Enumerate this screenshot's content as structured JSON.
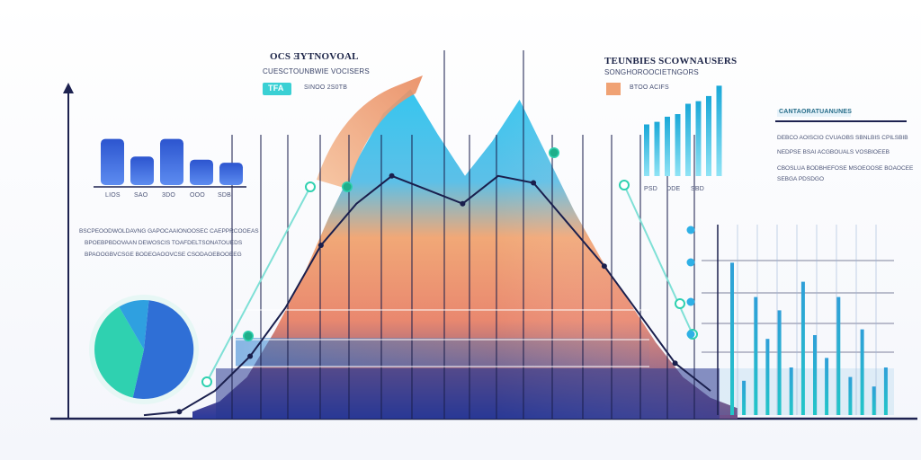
{
  "colors": {
    "axis": "#1d2250",
    "blue_dark": "#27359a",
    "blue": "#2f6fd6",
    "cyan": "#2fc3e6",
    "teal": "#2fd1b0",
    "orange": "#f0a274",
    "coral": "#e9766a",
    "navy_line": "#1a1f4d"
  },
  "header_left": {
    "title": "OCS ƎYTNOVOAL",
    "subtitle": "CUESCTOUNBWIE VOCISERS",
    "badge": "TFA",
    "badge_note": "SINOO 2S0TB"
  },
  "header_right": {
    "title": "TEUNBIES SCOWNAUSERS",
    "subtitle": "SONGHOROOCIETNGORS",
    "legend_note": "BTOO ACIFS"
  },
  "right_panel": {
    "heading": "CANTAORATUANUNES",
    "lines": [
      "DEBCO AOISCIO CVUAOBS SBNLBIS CPILSBIB",
      "NEDPSE BSAI ACGBOUALS VOSBIOEEB",
      "CBOSLUA BODBHEFOSE MSOEOOSE BOAOCEE",
      "SEBGA PDSDGO"
    ]
  },
  "left_panel": {
    "lines": [
      "BSCPEOODWOLDAVNG GAPOCAAIONOOSEC CAEPPRCOOEAS",
      "BPOEBPBDOVAAN DEWOSCIS TOAFDELTSONATOUEDS",
      "BPAOOGBVCSGE BODEOAOOVCSE CSODAOEBOOEEG"
    ]
  },
  "chart_data": [
    {
      "type": "bar",
      "title": "",
      "categories": [
        "LIOS",
        "SAO",
        "3DO",
        "OOO",
        "SDB"
      ],
      "values": [
        60,
        37,
        60,
        33,
        29
      ],
      "ylim": [
        0,
        70
      ],
      "grid": false
    },
    {
      "type": "pie",
      "title": "",
      "slices": [
        {
          "label": "",
          "value": 52,
          "color": "#2f6fd6"
        },
        {
          "label": "",
          "value": 38,
          "color": "#2fd1b0"
        },
        {
          "label": "",
          "value": 10,
          "color": "#2fa0e0"
        }
      ]
    },
    {
      "type": "area",
      "title": "",
      "x": [
        0,
        1,
        2,
        3,
        4,
        5,
        6,
        7,
        8,
        9,
        10,
        11,
        12,
        13,
        14,
        15,
        16,
        17,
        18,
        19,
        20
      ],
      "values": [
        2,
        5,
        12,
        25,
        40,
        58,
        74,
        88,
        95,
        82,
        70,
        80,
        92,
        76,
        60,
        46,
        34,
        22,
        12,
        6,
        3
      ],
      "ylim": [
        0,
        100
      ],
      "grid": true,
      "legend": "none"
    },
    {
      "type": "line",
      "title": "",
      "x": [
        0,
        1,
        2,
        3,
        4,
        5,
        6,
        7,
        8,
        9,
        10,
        11,
        12,
        13,
        14,
        15,
        16
      ],
      "values": [
        1,
        2,
        8,
        18,
        32,
        50,
        62,
        70,
        66,
        62,
        70,
        68,
        56,
        44,
        30,
        16,
        8
      ],
      "ylim": [
        0,
        100
      ]
    },
    {
      "type": "bar",
      "title": "",
      "categories": [
        "1",
        "2",
        "3",
        "4",
        "5",
        "6",
        "7",
        "8"
      ],
      "values": [
        40,
        42,
        46,
        48,
        56,
        58,
        62,
        70
      ],
      "tick_labels": [
        "PSD",
        "DDE",
        "SBD"
      ],
      "ylim": [
        0,
        80
      ]
    },
    {
      "type": "bar",
      "title": "",
      "categories": [
        "1",
        "2",
        "3",
        "4",
        "5",
        "6",
        "7",
        "8",
        "9",
        "10",
        "11",
        "12",
        "13",
        "14"
      ],
      "values": [
        80,
        18,
        62,
        40,
        55,
        25,
        70,
        42,
        30,
        62,
        20,
        45,
        15,
        25
      ],
      "ylim": [
        0,
        100
      ],
      "grid": true
    }
  ]
}
